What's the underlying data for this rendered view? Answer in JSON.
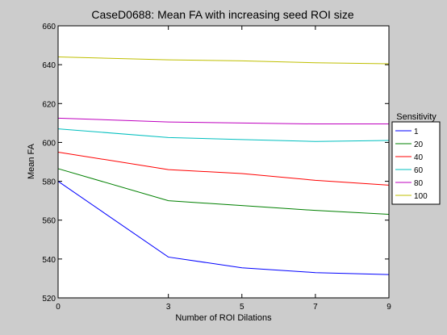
{
  "chart_data": {
    "type": "line",
    "title": "CaseD0688: Mean FA with increasing seed ROI size",
    "xlabel": "Number of ROI Dilations",
    "ylabel": "Mean FA",
    "xlim": [
      0,
      9
    ],
    "ylim": [
      520,
      660
    ],
    "xticks": [
      0,
      3,
      5,
      7,
      9
    ],
    "yticks": [
      520,
      540,
      560,
      580,
      600,
      620,
      640,
      660
    ],
    "x": [
      0,
      3,
      5,
      7,
      9
    ],
    "grid": false,
    "legend_title": "Sensitivity",
    "legend_position": "outside-right",
    "series": [
      {
        "name": "1",
        "color": "#0000ff",
        "values": [
          580,
          541,
          535.5,
          533,
          532
        ]
      },
      {
        "name": "20",
        "color": "#008000",
        "values": [
          586.5,
          570,
          567.5,
          565,
          563
        ]
      },
      {
        "name": "40",
        "color": "#ff0000",
        "values": [
          595,
          586,
          584,
          580.5,
          578
        ]
      },
      {
        "name": "60",
        "color": "#00bfbf",
        "values": [
          607,
          602.5,
          601.5,
          600.5,
          601
        ]
      },
      {
        "name": "80",
        "color": "#bf00bf",
        "values": [
          612.5,
          610.5,
          610,
          609.5,
          609.5
        ]
      },
      {
        "name": "100",
        "color": "#bfbf00",
        "values": [
          644,
          642.5,
          642,
          641,
          640.5
        ]
      }
    ]
  }
}
